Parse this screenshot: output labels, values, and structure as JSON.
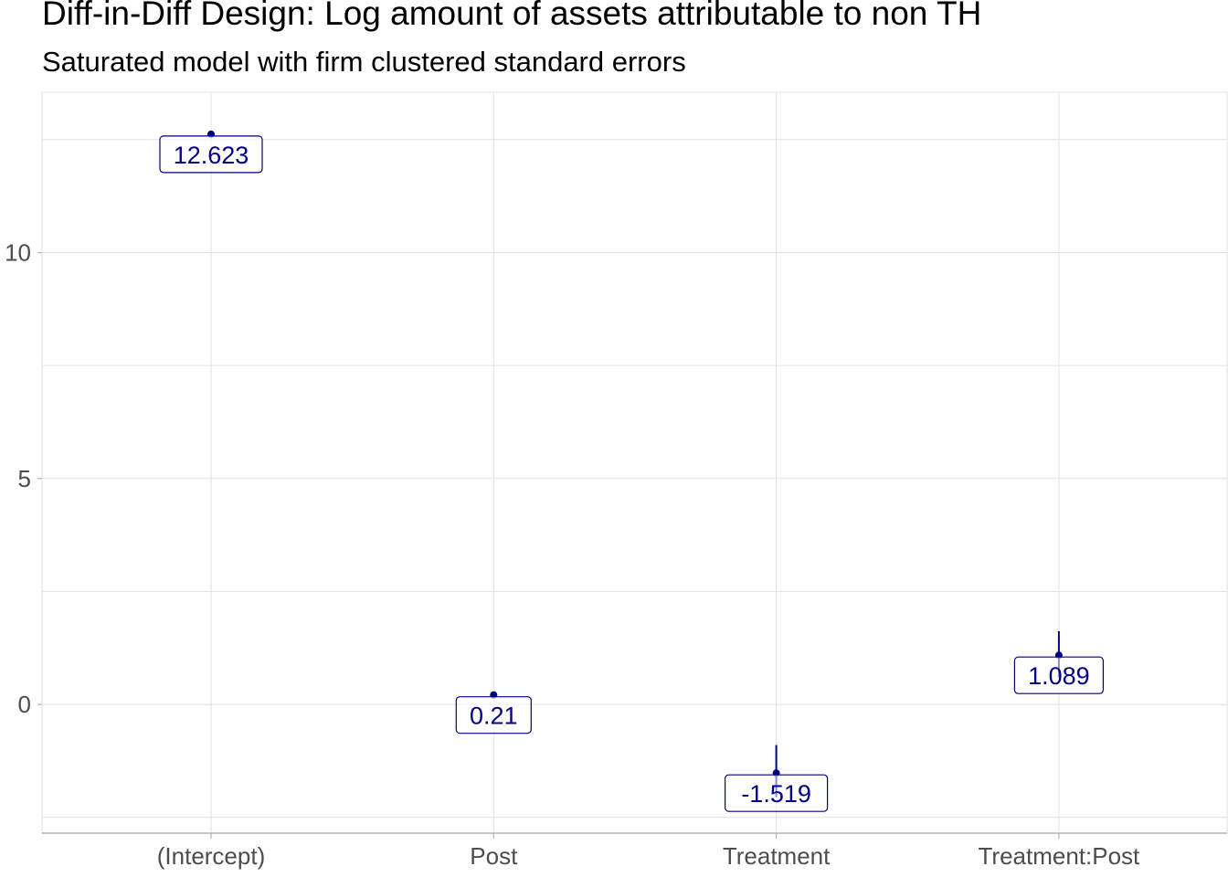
{
  "chart_data": {
    "type": "scatter",
    "title": "Diff-in-Diff Design: Log amount of assets attributable to non TH",
    "subtitle": "Saturated model with firm clustered standard errors",
    "xlabel": "",
    "ylabel": "",
    "categories": [
      "(Intercept)",
      "Post",
      "Treatment",
      "Treatment:Post"
    ],
    "values": [
      12.623,
      0.21,
      -1.519,
      1.089
    ],
    "labels": [
      "12.623",
      "0.21",
      "-1.519",
      "1.089"
    ],
    "ci_low": [
      12.55,
      0.16,
      -2.05,
      0.6
    ],
    "ci_high": [
      12.69,
      0.26,
      -0.9,
      1.62
    ],
    "ylim": [
      -2.85,
      13.55
    ],
    "yticks": [
      0,
      5,
      10
    ],
    "ytick_labels": [
      "0",
      "5",
      "10"
    ],
    "grid": true,
    "legend": "none",
    "colors": {
      "point": "#00007f",
      "label_text": "#00008b",
      "grid": "#e1e1e1",
      "axis": "#b3b3b3"
    }
  }
}
